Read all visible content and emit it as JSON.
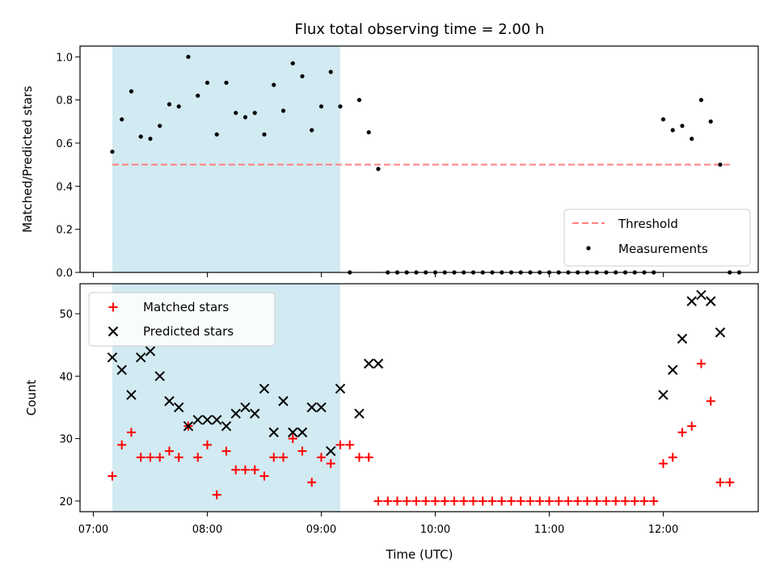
{
  "colors": {
    "shade": "#add8e6",
    "threshold": "#ff7f7f",
    "measurement": "#000000",
    "matched": "#ff0000",
    "predicted": "#000000"
  },
  "chart_data": [
    {
      "type": "scatter",
      "title": "Flux total observing time = 2.00 h",
      "ylabel": "Matched/Predicted stars",
      "xlabel": "",
      "ylim": [
        0,
        1.05
      ],
      "yticks": [
        0.0,
        0.2,
        0.4,
        0.6,
        0.8,
        1.0
      ],
      "ytick_labels": [
        "0.0",
        "0.2",
        "0.4",
        "0.6",
        "0.8",
        "1.0"
      ],
      "xlim": [
        "06:53",
        "12:50"
      ],
      "grid": false,
      "legend_position": "lower-right",
      "shaded_span": [
        "07:10",
        "09:10"
      ],
      "threshold": {
        "name": "Threshold",
        "value": 0.5,
        "x": [
          "07:10",
          "12:35"
        ]
      },
      "series": [
        {
          "name": "Measurements",
          "x": [
            "07:10",
            "07:15",
            "07:20",
            "07:25",
            "07:30",
            "07:35",
            "07:40",
            "07:45",
            "07:50",
            "07:55",
            "08:00",
            "08:05",
            "08:10",
            "08:15",
            "08:20",
            "08:25",
            "08:30",
            "08:35",
            "08:40",
            "08:45",
            "08:50",
            "08:55",
            "09:00",
            "09:05",
            "09:10",
            "09:15",
            "09:20",
            "09:25",
            "09:30",
            "09:35",
            "09:40",
            "09:45",
            "09:50",
            "09:55",
            "10:00",
            "10:05",
            "10:10",
            "10:15",
            "10:20",
            "10:25",
            "10:30",
            "10:35",
            "10:40",
            "10:45",
            "10:50",
            "10:55",
            "11:00",
            "11:05",
            "11:10",
            "11:15",
            "11:20",
            "11:25",
            "11:30",
            "11:35",
            "11:40",
            "11:45",
            "11:50",
            "11:55",
            "12:00",
            "12:05",
            "12:10",
            "12:15",
            "12:20",
            "12:25",
            "12:30",
            "12:35",
            "12:40"
          ],
          "y": [
            0.56,
            0.71,
            0.84,
            0.63,
            0.62,
            0.68,
            0.78,
            0.77,
            1.0,
            0.82,
            0.88,
            0.64,
            0.88,
            0.74,
            0.72,
            0.74,
            0.64,
            0.87,
            0.75,
            0.97,
            0.91,
            0.66,
            0.77,
            0.93,
            0.77,
            0.0,
            0.8,
            0.65,
            0.48,
            0.0,
            0.0,
            0.0,
            0.0,
            0.0,
            0.0,
            0.0,
            0.0,
            0.0,
            0.0,
            0.0,
            0.0,
            0.0,
            0.0,
            0.0,
            0.0,
            0.0,
            0.0,
            0.0,
            0.0,
            0.0,
            0.0,
            0.0,
            0.0,
            0.0,
            0.0,
            0.0,
            0.0,
            0.0,
            0.71,
            0.66,
            0.68,
            0.62,
            0.8,
            0.7,
            0.5,
            0.0,
            0.0
          ]
        }
      ]
    },
    {
      "type": "scatter",
      "title": "",
      "ylabel": "Count",
      "xlabel": "Time (UTC)",
      "ylim": [
        18.3,
        54.8
      ],
      "yticks": [
        20,
        30,
        40,
        50
      ],
      "ytick_labels": [
        "20",
        "30",
        "40",
        "50"
      ],
      "xlim": [
        "06:53",
        "12:50"
      ],
      "xticks": [
        "07:00",
        "08:00",
        "09:00",
        "10:00",
        "11:00",
        "12:00"
      ],
      "xtick_labels": [
        "07:00",
        "08:00",
        "09:00",
        "10:00",
        "11:00",
        "12:00"
      ],
      "grid": false,
      "legend_position": "upper-left",
      "shaded_span": [
        "07:10",
        "09:10"
      ],
      "series": [
        {
          "name": "Matched stars",
          "marker": "+",
          "x": [
            "07:10",
            "07:15",
            "07:20",
            "07:25",
            "07:30",
            "07:35",
            "07:40",
            "07:45",
            "07:50",
            "07:55",
            "08:00",
            "08:05",
            "08:10",
            "08:15",
            "08:20",
            "08:25",
            "08:30",
            "08:35",
            "08:40",
            "08:45",
            "08:50",
            "08:55",
            "09:00",
            "09:05",
            "09:10",
            "09:15",
            "09:20",
            "09:25",
            "09:30",
            "09:35",
            "09:40",
            "09:45",
            "09:50",
            "09:55",
            "10:00",
            "10:05",
            "10:10",
            "10:15",
            "10:20",
            "10:25",
            "10:30",
            "10:35",
            "10:40",
            "10:45",
            "10:50",
            "10:55",
            "11:00",
            "11:05",
            "11:10",
            "11:15",
            "11:20",
            "11:25",
            "11:30",
            "11:35",
            "11:40",
            "11:45",
            "11:50",
            "11:55",
            "12:00",
            "12:05",
            "12:10",
            "12:15",
            "12:20",
            "12:25",
            "12:30",
            "12:35"
          ],
          "y": [
            24,
            29,
            31,
            27,
            27,
            27,
            28,
            27,
            32,
            27,
            29,
            21,
            28,
            25,
            25,
            25,
            24,
            27,
            27,
            30,
            28,
            23,
            27,
            26,
            29,
            29,
            27,
            27,
            20,
            20,
            20,
            20,
            20,
            20,
            20,
            20,
            20,
            20,
            20,
            20,
            20,
            20,
            20,
            20,
            20,
            20,
            20,
            20,
            20,
            20,
            20,
            20,
            20,
            20,
            20,
            20,
            20,
            20,
            26,
            27,
            31,
            32,
            42,
            36,
            23,
            23
          ]
        },
        {
          "name": "Predicted stars",
          "marker": "x",
          "x": [
            "07:10",
            "07:15",
            "07:20",
            "07:25",
            "07:30",
            "07:35",
            "07:40",
            "07:45",
            "07:50",
            "07:55",
            "08:00",
            "08:05",
            "08:10",
            "08:15",
            "08:20",
            "08:25",
            "08:30",
            "08:35",
            "08:40",
            "08:45",
            "08:50",
            "08:55",
            "09:00",
            "09:05",
            "09:10",
            "09:15",
            "09:20",
            "09:25",
            "09:30",
            "12:00",
            "12:05",
            "12:10",
            "12:15",
            "12:20",
            "12:25",
            "12:30"
          ],
          "y": [
            43,
            41,
            37,
            43,
            44,
            40,
            36,
            35,
            32,
            33,
            33,
            33,
            32,
            34,
            35,
            34,
            38,
            31,
            36,
            31,
            31,
            35,
            35,
            28,
            38,
            null,
            34,
            42,
            42,
            37,
            41,
            46,
            52,
            53,
            52,
            47
          ]
        }
      ]
    }
  ]
}
